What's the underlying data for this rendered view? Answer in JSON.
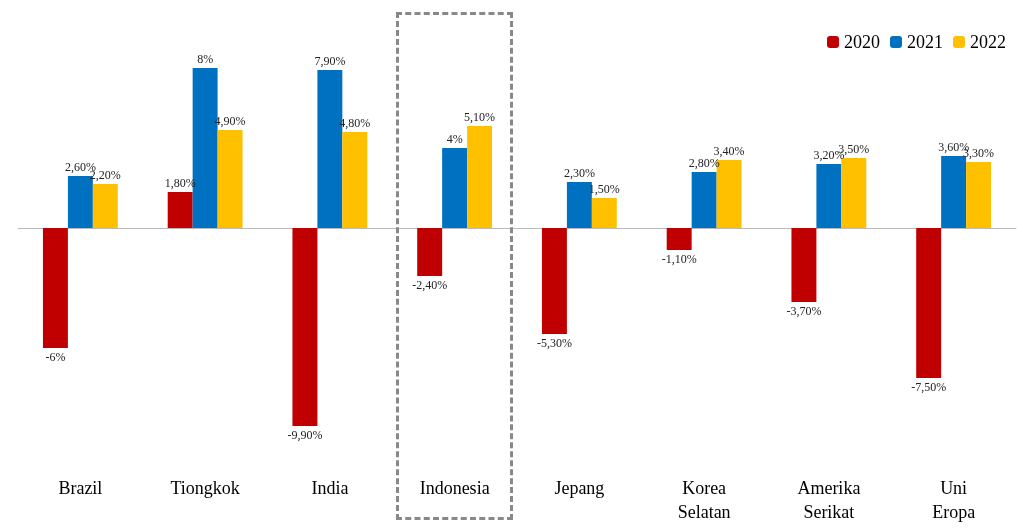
{
  "chart_data": {
    "type": "bar",
    "categories": [
      "Brazil",
      "Tiongkok",
      "India",
      "Indonesia",
      "Jepang",
      "Korea Selatan",
      "Amerika Serikat",
      "Uni Eropa"
    ],
    "series": [
      {
        "name": "2020",
        "color": "#c00000",
        "values": [
          -6,
          1.8,
          -9.9,
          -2.4,
          -5.3,
          -1.1,
          -3.7,
          -7.5
        ],
        "value_labels": [
          "-6%",
          "1,80%",
          "-9,90%",
          "-2,40%",
          "-5,30%",
          "-1,10%",
          "-3,70%",
          "-7,50%"
        ]
      },
      {
        "name": "2021",
        "color": "#0070c0",
        "values": [
          2.6,
          8,
          7.9,
          4,
          2.3,
          2.8,
          3.2,
          3.6
        ],
        "value_labels": [
          "2,60%",
          "8%",
          "7,90%",
          "4%",
          "2,30%",
          "2,80%",
          "3,20%",
          "3,60%"
        ]
      },
      {
        "name": "2022",
        "color": "#ffc000",
        "values": [
          2.2,
          4.9,
          4.8,
          5.1,
          1.5,
          3.4,
          3.5,
          3.3
        ],
        "value_labels": [
          "2,20%",
          "4,90%",
          "4,80%",
          "5,10%",
          "1,50%",
          "3,40%",
          "3,50%",
          "3,30%"
        ]
      }
    ],
    "legend": "top right",
    "grid": false
  }
}
